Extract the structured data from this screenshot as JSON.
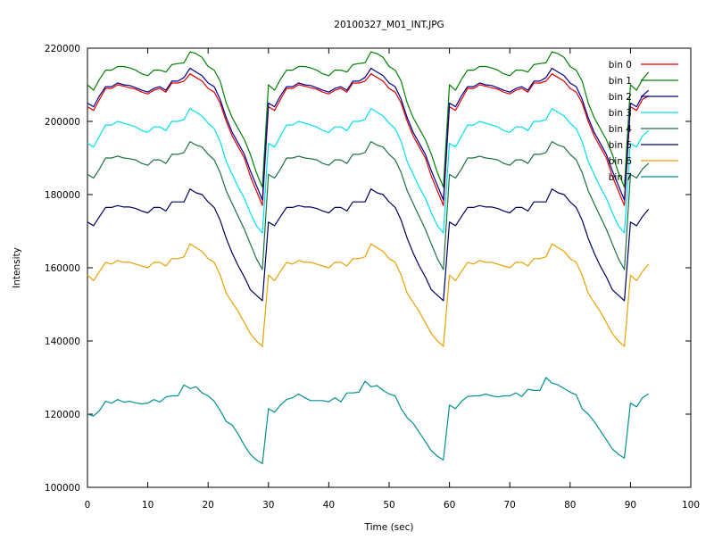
{
  "chart_data": {
    "type": "line",
    "title": "20100327_M01_INT.JPG",
    "xlabel": "Time (sec)",
    "ylabel": "Intensity",
    "xlim": [
      0,
      100
    ],
    "ylim": [
      100000,
      220000
    ],
    "x_ticks": [
      "0",
      "10",
      "20",
      "30",
      "40",
      "50",
      "60",
      "70",
      "80",
      "90",
      "100"
    ],
    "y_ticks": [
      "100000",
      "120000",
      "140000",
      "160000",
      "180000",
      "200000",
      "220000"
    ],
    "grid": false,
    "legend_position": "top-right",
    "x": [
      0,
      1,
      2,
      3,
      4,
      5,
      6,
      7,
      8,
      9,
      10,
      11,
      12,
      13,
      14,
      15,
      16,
      17,
      18,
      19,
      20,
      21,
      22,
      23,
      24,
      25,
      26,
      27,
      28,
      29,
      30,
      31,
      32,
      33,
      34,
      35,
      36,
      37,
      38,
      39,
      40,
      41,
      42,
      43,
      44,
      45,
      46,
      47,
      48,
      49,
      50,
      51,
      52,
      53,
      54,
      55,
      56,
      57,
      58,
      59,
      60,
      61,
      62,
      63,
      64,
      65,
      66,
      67,
      68,
      69,
      70,
      71,
      72,
      73,
      74,
      75,
      76,
      77,
      78,
      79,
      80,
      81,
      82,
      83,
      84,
      85,
      86,
      87,
      88,
      89,
      90,
      91,
      92,
      93
    ],
    "series": [
      {
        "name": "bin 0",
        "color": "#e00000",
        "values": [
          204000,
          203000,
          206000,
          209000,
          209000,
          210000,
          209600,
          209200,
          208800,
          208000,
          207500,
          208500,
          209000,
          208000,
          210500,
          210500,
          211000,
          213000,
          212000,
          211000,
          209000,
          208000,
          205000,
          200000,
          196000,
          193000,
          190000,
          185000,
          181000,
          177000,
          204000,
          203000,
          206000,
          209000,
          209000,
          210000,
          209600,
          209200,
          208800,
          208000,
          207500,
          208500,
          209000,
          208000,
          210500,
          210500,
          211000,
          213000,
          212000,
          211000,
          209000,
          208000,
          205000,
          200000,
          196000,
          193000,
          190000,
          185000,
          181000,
          177000,
          204000,
          203000,
          206000,
          209000,
          209000,
          210000,
          209600,
          209200,
          208800,
          208000,
          207500,
          208500,
          209000,
          208000,
          210500,
          210500,
          211000,
          213000,
          212000,
          211000,
          209000,
          208000,
          205000,
          200000,
          196000,
          193000,
          190000,
          185000,
          181000,
          177000,
          204000,
          203000,
          206000,
          207000
        ]
      },
      {
        "name": "bin 1",
        "color": "#008000",
        "values": [
          210000,
          208500,
          211500,
          214000,
          214000,
          215000,
          215000,
          214600,
          214000,
          213000,
          212500,
          214000,
          214000,
          213500,
          215500,
          215800,
          216000,
          219000,
          218500,
          217500,
          215000,
          214000,
          211000,
          205000,
          201000,
          198000,
          195000,
          191000,
          186000,
          182000,
          210000,
          208500,
          211500,
          214000,
          214000,
          215000,
          215000,
          214600,
          214000,
          213000,
          212500,
          214000,
          214000,
          213500,
          215500,
          215800,
          216000,
          219000,
          218500,
          217500,
          215000,
          214000,
          211000,
          205000,
          201000,
          198000,
          195000,
          191000,
          186000,
          182000,
          210000,
          208500,
          211500,
          214000,
          214000,
          215000,
          215000,
          214600,
          214000,
          213000,
          212500,
          214000,
          214000,
          213500,
          215500,
          215800,
          216000,
          219000,
          218500,
          217500,
          215000,
          214000,
          211000,
          205000,
          201000,
          198000,
          195000,
          191000,
          186000,
          182000,
          210000,
          208500,
          211500,
          213500
        ]
      },
      {
        "name": "bin 2",
        "color": "#000090",
        "values": [
          205000,
          204000,
          207000,
          209500,
          209500,
          210500,
          210000,
          209800,
          209200,
          208500,
          208000,
          209000,
          209500,
          208500,
          211000,
          211000,
          212000,
          214500,
          213500,
          212500,
          210500,
          209500,
          206000,
          201000,
          197000,
          194000,
          191000,
          186500,
          182500,
          178500,
          205000,
          204000,
          207000,
          209500,
          209500,
          210500,
          210000,
          209800,
          209200,
          208500,
          208000,
          209000,
          209500,
          208500,
          211000,
          211000,
          212000,
          214500,
          213500,
          212500,
          210500,
          209500,
          206000,
          201000,
          197000,
          194000,
          191000,
          186500,
          182500,
          178500,
          205000,
          204000,
          207000,
          209500,
          209500,
          210500,
          210000,
          209800,
          209200,
          208500,
          208000,
          209000,
          209500,
          208500,
          211000,
          211000,
          212000,
          214500,
          213500,
          212500,
          210500,
          209500,
          206000,
          201000,
          197000,
          194000,
          191000,
          186500,
          182500,
          178500,
          205000,
          204000,
          207000,
          208500
        ]
      },
      {
        "name": "bin 3",
        "color": "#00e0f0",
        "values": [
          194000,
          193000,
          196000,
          199000,
          199000,
          200000,
          199500,
          199000,
          198500,
          197500,
          197000,
          198500,
          198500,
          197500,
          200000,
          200000,
          200500,
          203500,
          202500,
          201500,
          199500,
          198000,
          194500,
          189000,
          185500,
          182000,
          179000,
          175000,
          171500,
          169500,
          194000,
          193000,
          196000,
          199000,
          199000,
          200000,
          199500,
          199000,
          198500,
          197500,
          197000,
          198500,
          198500,
          197500,
          200000,
          200000,
          200500,
          203500,
          202500,
          201500,
          199500,
          198000,
          194500,
          189000,
          185500,
          182000,
          179000,
          175000,
          171500,
          169500,
          194000,
          193000,
          196000,
          199000,
          199000,
          200000,
          199500,
          199000,
          198500,
          197500,
          197000,
          198500,
          198500,
          197500,
          200000,
          200000,
          200500,
          203500,
          202500,
          201500,
          199500,
          198000,
          194500,
          189000,
          185500,
          182000,
          179000,
          175000,
          171500,
          169500,
          194000,
          193000,
          196000,
          197500
        ]
      },
      {
        "name": "bin 4",
        "color": "#1a7040",
        "values": [
          185500,
          184500,
          187000,
          190000,
          190000,
          190500,
          190000,
          189800,
          189500,
          188500,
          188000,
          189500,
          189500,
          188500,
          191000,
          191000,
          191500,
          194500,
          193500,
          193000,
          191000,
          189500,
          186000,
          181000,
          177500,
          174000,
          170500,
          166500,
          162500,
          159500,
          185500,
          184500,
          187000,
          190000,
          190000,
          190500,
          190000,
          189800,
          189500,
          188500,
          188000,
          189500,
          189500,
          188500,
          191000,
          191000,
          191500,
          194500,
          193500,
          193000,
          191000,
          189500,
          186000,
          181000,
          177500,
          174000,
          170500,
          166500,
          162500,
          159500,
          185500,
          184500,
          187000,
          190000,
          190000,
          190500,
          190000,
          189800,
          189500,
          188500,
          188000,
          189500,
          189500,
          188500,
          191000,
          191000,
          191500,
          194500,
          193500,
          193000,
          191000,
          189500,
          186000,
          181000,
          177500,
          174000,
          170500,
          166500,
          162500,
          159500,
          185500,
          184500,
          187000,
          188500
        ]
      },
      {
        "name": "bin 5",
        "color": "#000060",
        "values": [
          172500,
          171500,
          174000,
          176500,
          176500,
          177000,
          176600,
          176600,
          176200,
          175500,
          175000,
          176500,
          176500,
          175500,
          178000,
          178000,
          178000,
          181500,
          180500,
          180000,
          178000,
          176500,
          173000,
          168000,
          164000,
          160500,
          157500,
          154000,
          152500,
          151000,
          172500,
          171500,
          174000,
          176500,
          176500,
          177000,
          176600,
          176600,
          176200,
          175500,
          175000,
          176500,
          176500,
          175500,
          178000,
          178000,
          178000,
          181500,
          180500,
          180000,
          178000,
          176500,
          173000,
          168000,
          164000,
          160500,
          157500,
          154000,
          152500,
          151000,
          172500,
          171500,
          174000,
          176500,
          176500,
          177000,
          176600,
          176600,
          176200,
          175500,
          175000,
          176500,
          176500,
          175500,
          178000,
          178000,
          178000,
          181500,
          180500,
          180000,
          178000,
          176500,
          173000,
          168000,
          164000,
          160500,
          157500,
          154000,
          152500,
          151000,
          172500,
          171500,
          174000,
          176000
        ]
      },
      {
        "name": "bin 6",
        "color": "#e8a000",
        "values": [
          158000,
          156500,
          159000,
          161500,
          161000,
          162000,
          161500,
          161500,
          161000,
          160500,
          160000,
          161500,
          161500,
          160500,
          162500,
          162500,
          163000,
          166500,
          165500,
          164500,
          162500,
          161500,
          158000,
          153000,
          150500,
          148000,
          145000,
          142000,
          140000,
          138500,
          158000,
          156500,
          159000,
          161500,
          161000,
          162000,
          161500,
          161500,
          161000,
          160500,
          160000,
          161500,
          161500,
          160500,
          162500,
          162500,
          163000,
          166500,
          165500,
          164500,
          162500,
          161500,
          158000,
          153000,
          150500,
          148000,
          145000,
          142000,
          140000,
          138500,
          158000,
          156500,
          159000,
          161500,
          161000,
          162000,
          161500,
          161500,
          161000,
          160500,
          160000,
          161500,
          161500,
          160500,
          162500,
          162500,
          163000,
          166500,
          165500,
          164500,
          162500,
          161500,
          158000,
          153000,
          150500,
          148000,
          145000,
          142000,
          140000,
          138500,
          158000,
          156500,
          159000,
          161000
        ]
      },
      {
        "name": "bin 7",
        "color": "#009090",
        "values": [
          120000,
          119500,
          121000,
          123500,
          123000,
          124000,
          123300,
          123500,
          123100,
          122800,
          123000,
          124000,
          123300,
          124700,
          125000,
          125000,
          128000,
          127000,
          127500,
          125800,
          125000,
          123500,
          121000,
          118000,
          117000,
          114500,
          111500,
          109000,
          107500,
          106500,
          121500,
          120500,
          122500,
          124000,
          124500,
          125500,
          124500,
          123700,
          123700,
          123700,
          123400,
          124500,
          123400,
          125800,
          125800,
          126000,
          129000,
          127500,
          127800,
          126500,
          125500,
          125000,
          121500,
          119000,
          117500,
          115000,
          112500,
          110000,
          108500,
          107500,
          122500,
          121500,
          123500,
          124800,
          125000,
          125000,
          125500,
          125000,
          124700,
          125000,
          125000,
          125800,
          124800,
          126800,
          126500,
          126500,
          130000,
          128500,
          128000,
          127000,
          126000,
          125300,
          121500,
          120000,
          118000,
          115500,
          113000,
          110500,
          109000,
          108000,
          123000,
          122000,
          124500,
          125500
        ]
      }
    ]
  }
}
